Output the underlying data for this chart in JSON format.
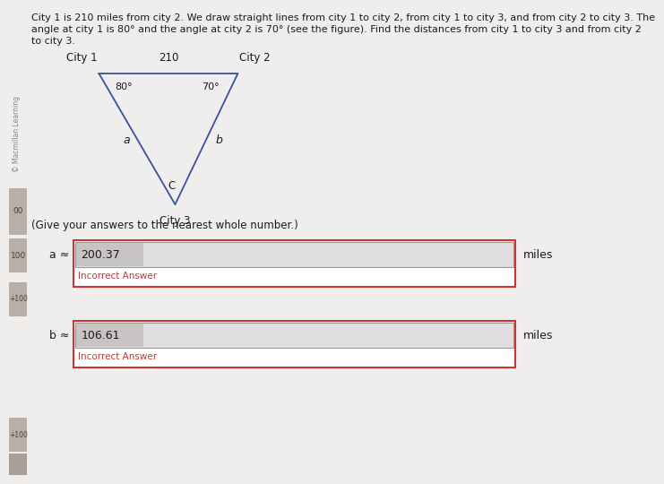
{
  "problem_text_line1": "City 1 is 210 miles from city 2. We draw straight lines from city 1 to city 2, from city 1 to city 3, and from city 2 to city 3. The",
  "problem_text_line2": "angle at city 1 is 80° and the angle at city 2 is 70° (see the figure). Find the distances from city 1 to city 3 and from city 2",
  "problem_text_line3": "to city 3.",
  "city1_label": "City 1",
  "city2_label": "City 2",
  "city3_label": "City 3",
  "distance_label": "210",
  "angle1_label": "80°",
  "angle2_label": "70°",
  "side_a_label": "a",
  "side_b_label": "b",
  "angle_c_label": "C",
  "instruction_text": "(Give your answers to the nearest whole number.)",
  "answer_a_label": "a ≈",
  "answer_a_value": "200.37",
  "answer_b_label": "b ≈",
  "answer_b_value": "106.61",
  "miles_text": "miles",
  "incorrect_text": "Incorrect Answer",
  "copyright_text": "© Macmillan Learning",
  "bg_color": "#f0eeec",
  "text_color": "#1a1a1a",
  "triangle_color": "#3a4fa0",
  "answer_box_border": "#cc3333",
  "answer_box_fill": "#e0dede",
  "answer_value_fill": "#c8c4c4",
  "incorrect_color": "#cc3333",
  "sidebar_bg": "#c8c0b8",
  "sidebar_text": "#444444"
}
